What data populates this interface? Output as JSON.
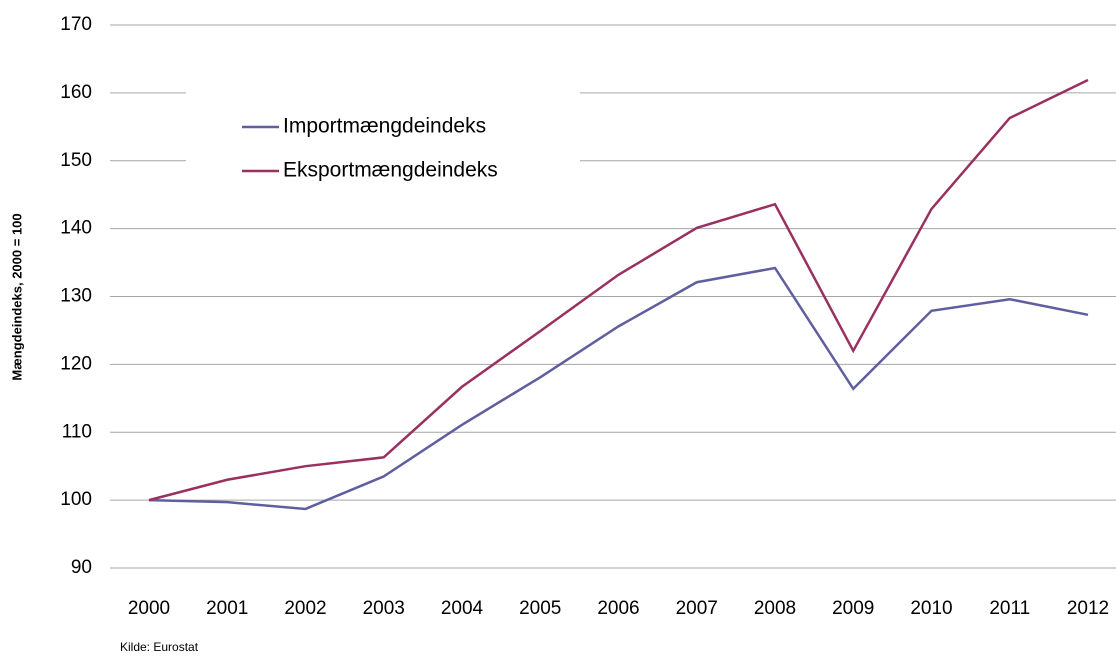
{
  "chart_data": {
    "type": "line",
    "y_label": "Mængdeindeks, 2000 = 100",
    "source": "Kilde: Eurostat",
    "categories": [
      "2000",
      "2001",
      "2002",
      "2003",
      "2004",
      "2005",
      "2006",
      "2007",
      "2008",
      "2009",
      "2010",
      "2011",
      "2012"
    ],
    "series": [
      {
        "name": "Importmængdeindeks",
        "color": "#5f5f9f",
        "values": [
          100,
          99.7,
          98.7,
          103.5,
          111.1,
          118.1,
          125.6,
          132.1,
          134.2,
          116.4,
          127.9,
          129.6,
          127.3
        ]
      },
      {
        "name": "Eksportmængdeindeks",
        "color": "#993060",
        "values": [
          100,
          103,
          105,
          106.3,
          116.7,
          124.9,
          133.2,
          140.1,
          143.6,
          122,
          142.9,
          156.3,
          161.9
        ]
      }
    ],
    "ylim": [
      90,
      170
    ],
    "yticks": [
      90,
      100,
      110,
      120,
      130,
      140,
      150,
      160,
      170
    ],
    "grid": true,
    "legend": "upper left"
  }
}
